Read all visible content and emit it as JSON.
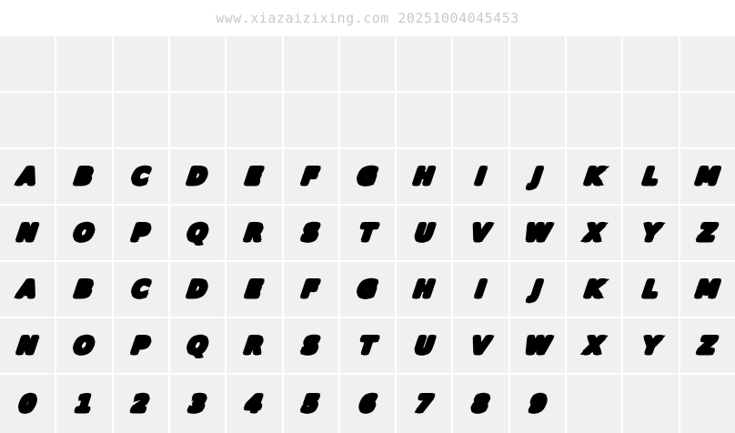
{
  "watermark": {
    "text": "www.xiazaizixing.com 20251004045453"
  },
  "colors": {
    "watermark_text": "#c9c9c9",
    "cell_background": "#f0f0f0",
    "glyph": "#000000",
    "page_background": "#ffffff"
  },
  "glyph_grid": {
    "columns": 13,
    "rows": [
      {
        "name": "empty-row-1",
        "cells": []
      },
      {
        "name": "empty-row-2",
        "cells": []
      },
      {
        "name": "uppercase-a-m",
        "cells": [
          "A",
          "B",
          "C",
          "D",
          "E",
          "F",
          "G",
          "H",
          "I",
          "J",
          "K",
          "L",
          "M"
        ]
      },
      {
        "name": "uppercase-n-z",
        "cells": [
          "N",
          "O",
          "P",
          "Q",
          "R",
          "S",
          "T",
          "U",
          "V",
          "W",
          "X",
          "Y",
          "Z"
        ]
      },
      {
        "name": "lowercase-a-m",
        "cells": [
          "a",
          "b",
          "c",
          "d",
          "e",
          "f",
          "g",
          "h",
          "i",
          "j",
          "k",
          "l",
          "m"
        ]
      },
      {
        "name": "lowercase-n-z",
        "cells": [
          "n",
          "o",
          "p",
          "q",
          "r",
          "s",
          "t",
          "u",
          "v",
          "w",
          "x",
          "y",
          "z"
        ]
      },
      {
        "name": "digits",
        "cells": [
          "0",
          "1",
          "2",
          "3",
          "4",
          "5",
          "6",
          "7",
          "8",
          "9"
        ]
      }
    ]
  }
}
